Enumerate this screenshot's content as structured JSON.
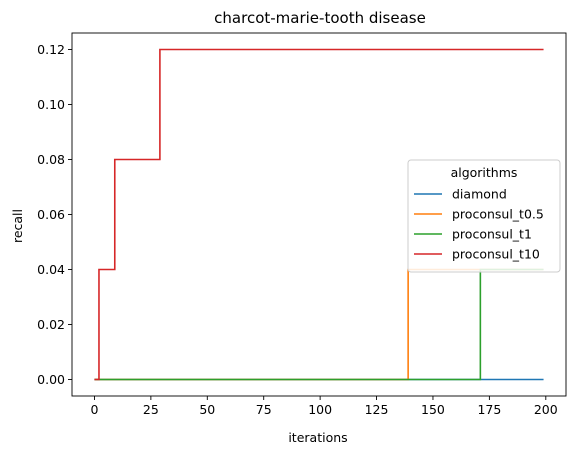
{
  "chart_data": {
    "type": "line",
    "title": "charcot-marie-tooth disease",
    "xlabel": "iterations",
    "ylabel": "recall",
    "xlim": [
      -9.95,
      208.95
    ],
    "ylim": [
      -0.006,
      0.126
    ],
    "xticks": [
      0,
      25,
      50,
      75,
      100,
      125,
      150,
      175,
      200
    ],
    "yticks": [
      0.0,
      0.02,
      0.04,
      0.06,
      0.08,
      0.1,
      0.12
    ],
    "ytick_labels": [
      "0.00",
      "0.02",
      "0.04",
      "0.06",
      "0.08",
      "0.10",
      "0.12"
    ],
    "grid": false,
    "legend": {
      "title": "algorithms",
      "placement": "center-right"
    },
    "series": [
      {
        "name": "diamond",
        "color": "#1f77b4",
        "drawstyle": "steps-post",
        "points": [
          [
            0,
            0
          ],
          [
            199,
            0
          ]
        ]
      },
      {
        "name": "proconsul_t0.5",
        "color": "#ff7f0e",
        "drawstyle": "steps-post",
        "points": [
          [
            0,
            0
          ],
          [
            139,
            0.04
          ],
          [
            199,
            0.04
          ]
        ]
      },
      {
        "name": "proconsul_t1",
        "color": "#2ca02c",
        "drawstyle": "steps-post",
        "points": [
          [
            0,
            0
          ],
          [
            171,
            0.04
          ],
          [
            199,
            0.04
          ]
        ]
      },
      {
        "name": "proconsul_t10",
        "color": "#d62728",
        "drawstyle": "steps-post",
        "points": [
          [
            0,
            0
          ],
          [
            2,
            0.04
          ],
          [
            9,
            0.08
          ],
          [
            29,
            0.12
          ],
          [
            199,
            0.12
          ]
        ]
      }
    ]
  }
}
